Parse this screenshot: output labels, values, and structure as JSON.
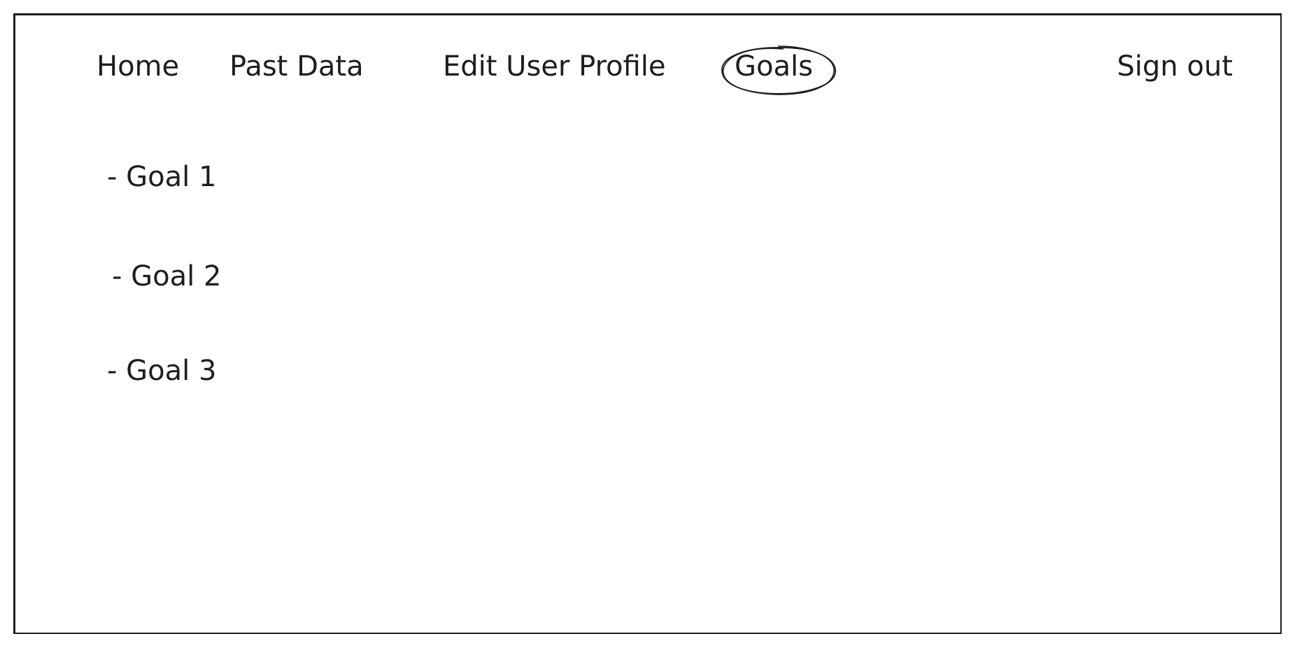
{
  "nav": {
    "items": [
      {
        "label": "Home"
      },
      {
        "label": "Past Data"
      },
      {
        "label": "Edit User Profile"
      },
      {
        "label": "Goals",
        "active": true
      },
      {
        "label": "Sign out"
      }
    ]
  },
  "goals": {
    "items": [
      {
        "label": "- Goal 1"
      },
      {
        "label": "- Goal 2"
      },
      {
        "label": "- Goal 3"
      }
    ]
  },
  "colors": {
    "ink": "#1e1e1e",
    "background": "#ffffff"
  }
}
